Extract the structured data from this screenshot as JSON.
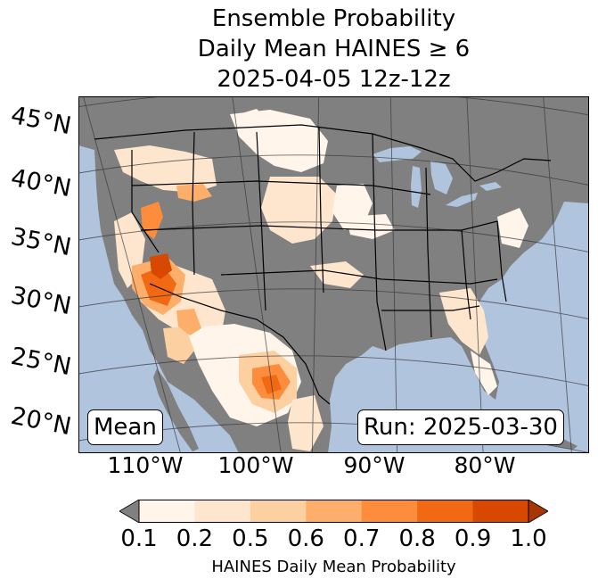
{
  "title": {
    "line1": "Ensemble Probability",
    "line2": "Daily Mean HAINES ≥ 6",
    "line3": "2025-04-05 12z-12z"
  },
  "latitude_labels": [
    "45°N",
    "40°N",
    "35°N",
    "30°N",
    "25°N",
    "20°N"
  ],
  "longitude_labels": [
    "110°W",
    "100°W",
    "90°W",
    "80°W"
  ],
  "stat_label": "Mean",
  "run_label": "Run: 2025-03-30",
  "colorbar": {
    "label": "HAINES Daily Mean Probability",
    "ticks": [
      "0.1",
      "0.2",
      "0.5",
      "0.6",
      "0.7",
      "0.8",
      "0.9",
      "1.0"
    ],
    "colors": [
      "#fff5eb",
      "#fee6ce",
      "#fdd0a2",
      "#fdae6b",
      "#fd8d3c",
      "#f16913",
      "#d94801",
      "#a63603"
    ],
    "under_color": "#808080"
  },
  "colors": {
    "ocean": "#b0c4de",
    "no_data": "#808080"
  }
}
